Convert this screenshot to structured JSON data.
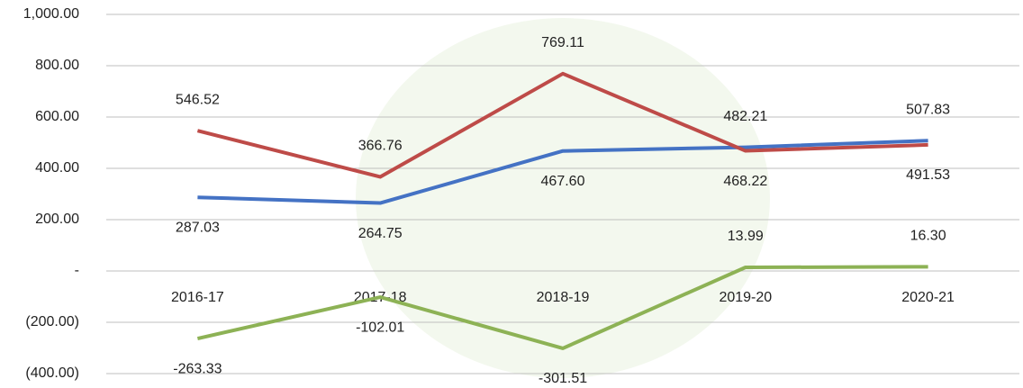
{
  "chart_data": {
    "type": "line",
    "categories": [
      "2016-17",
      "2017-18",
      "2018-19",
      "2019-20",
      "2020-21"
    ],
    "series": [
      {
        "color": "#4472c4",
        "values": [
          287.03,
          264.75,
          467.6,
          482.21,
          507.83
        ],
        "value_labels": [
          "287.03",
          "264.75",
          "467.60",
          "482.21",
          "507.83"
        ]
      },
      {
        "color": "#be4b48",
        "values": [
          546.52,
          366.76,
          769.11,
          468.22,
          491.53
        ],
        "value_labels": [
          "546.52",
          "366.76",
          "769.11",
          "468.22",
          "491.53"
        ]
      },
      {
        "color": "#8db255",
        "values": [
          -263.33,
          -102.01,
          -301.51,
          13.99,
          16.3
        ],
        "value_labels": [
          "-263.33",
          "-102.01",
          "-301.51",
          "13.99",
          "16.30"
        ]
      }
    ],
    "ylim": [
      -400,
      1000
    ],
    "yticks": [
      {
        "value": -400,
        "label": "(400.00)"
      },
      {
        "value": -200,
        "label": "(200.00)"
      },
      {
        "value": 0,
        "label": "-"
      },
      {
        "value": 200,
        "label": "200.00"
      },
      {
        "value": 400,
        "label": "400.00"
      },
      {
        "value": 600,
        "label": "600.00"
      },
      {
        "value": 800,
        "label": "800.00"
      },
      {
        "value": 1000,
        "label": "1,000.00"
      }
    ],
    "grid": true
  }
}
